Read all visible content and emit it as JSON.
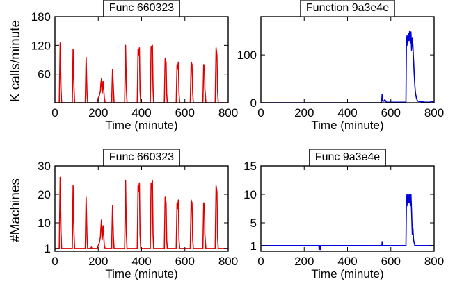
{
  "chart_data": [
    {
      "type": "line",
      "title": "Func 660323",
      "xlabel": "Time (minute)",
      "ylabel": "K calls/minute",
      "xlim": [
        0,
        800
      ],
      "ylim": [
        0,
        180
      ],
      "xticks": [
        0,
        200,
        400,
        600,
        800
      ],
      "yticks": [
        60,
        120,
        180
      ],
      "ytick_side": "left",
      "grid": false,
      "series": [
        {
          "color": "#e00000",
          "x": [
            0,
            20,
            24,
            28,
            31,
            34,
            80,
            84,
            88,
            91,
            94,
            140,
            144,
            148,
            151,
            154,
            195,
            200,
            205,
            210,
            212,
            215,
            218,
            222,
            228,
            232,
            235,
            262,
            266,
            270,
            273,
            276,
            322,
            326,
            330,
            333,
            336,
            380,
            384,
            386,
            390,
            393,
            396,
            440,
            444,
            446,
            450,
            453,
            456,
            505,
            509,
            513,
            516,
            519,
            560,
            564,
            566,
            570,
            573,
            576,
            625,
            629,
            633,
            636,
            639,
            683,
            687,
            691,
            692,
            694,
            697,
            740,
            744,
            748,
            751,
            754,
            800
          ],
          "y": [
            0,
            0,
            125,
            30,
            0,
            0,
            0,
            112,
            30,
            0,
            0,
            0,
            95,
            20,
            0,
            0,
            0,
            10,
            15,
            25,
            40,
            50,
            20,
            45,
            10,
            0,
            0,
            0,
            70,
            30,
            0,
            0,
            0,
            120,
            30,
            0,
            0,
            0,
            112,
            100,
            115,
            25,
            0,
            0,
            118,
            110,
            120,
            30,
            0,
            0,
            92,
            85,
            20,
            0,
            0,
            80,
            70,
            85,
            20,
            0,
            0,
            85,
            80,
            20,
            0,
            0,
            80,
            75,
            30,
            20,
            0,
            0,
            115,
            100,
            25,
            0,
            0
          ]
        }
      ]
    },
    {
      "type": "line",
      "title": "Function 9a3e4e",
      "xlabel": "Time (minute)",
      "ylabel": "",
      "xlim": [
        0,
        800
      ],
      "ylim": [
        0,
        180
      ],
      "xticks": [
        0,
        200,
        400,
        600,
        800
      ],
      "yticks": [
        0,
        100
      ],
      "ytick_side": "left",
      "grid": false,
      "series": [
        {
          "color": "#0000dd",
          "x": [
            0,
            550,
            557,
            560,
            563,
            568,
            572,
            576,
            580,
            600,
            670,
            672,
            675,
            678,
            681,
            684,
            687,
            690,
            693,
            696,
            699,
            702,
            705,
            708,
            711,
            714,
            718,
            722,
            726,
            740,
            760,
            780,
            790,
            800
          ],
          "y": [
            0,
            0,
            1,
            17,
            5,
            3,
            6,
            4,
            1,
            1,
            1,
            130,
            140,
            120,
            145,
            130,
            150,
            125,
            148,
            110,
            135,
            120,
            90,
            60,
            35,
            20,
            10,
            5,
            3,
            2,
            1,
            1,
            3,
            0
          ]
        }
      ]
    },
    {
      "type": "line",
      "title": "Func 660323",
      "xlabel": "Time (minute)",
      "ylabel": "#Machines",
      "xlim": [
        0,
        800
      ],
      "ylim": [
        0,
        30
      ],
      "xticks": [
        0,
        200,
        400,
        600,
        800
      ],
      "yticks": [
        1,
        10,
        20,
        30
      ],
      "ytick_side": "left",
      "grid": false,
      "series": [
        {
          "color": "#e00000",
          "x": [
            0,
            20,
            24,
            28,
            31,
            34,
            80,
            84,
            88,
            91,
            94,
            140,
            144,
            148,
            151,
            154,
            165,
            168,
            171,
            195,
            200,
            205,
            210,
            212,
            215,
            218,
            222,
            228,
            232,
            235,
            262,
            266,
            270,
            273,
            276,
            322,
            326,
            330,
            333,
            336,
            380,
            384,
            386,
            390,
            393,
            396,
            440,
            444,
            446,
            450,
            453,
            456,
            505,
            509,
            513,
            516,
            519,
            560,
            564,
            566,
            570,
            573,
            576,
            625,
            629,
            633,
            636,
            639,
            683,
            687,
            691,
            692,
            694,
            697,
            740,
            744,
            748,
            751,
            754,
            800
          ],
          "y": [
            1,
            1,
            26,
            7,
            1,
            1,
            1,
            23,
            6,
            1,
            1,
            1,
            19,
            5,
            1,
            1,
            1,
            1.5,
            1,
            1,
            2,
            3,
            5,
            8,
            11,
            4,
            9,
            2,
            1,
            1,
            1,
            16,
            5,
            1,
            1,
            1,
            25,
            6,
            1,
            1,
            1,
            23,
            21,
            24,
            6,
            1,
            1,
            24,
            22,
            25,
            6,
            1,
            1,
            19,
            17,
            4,
            1,
            1,
            17,
            15,
            18,
            4,
            1,
            1,
            18,
            17,
            4,
            1,
            1,
            17,
            16,
            6,
            4,
            1,
            1,
            23,
            21,
            5,
            1,
            1
          ]
        }
      ]
    },
    {
      "type": "line",
      "title": "Func 9a3e4e",
      "xlabel": "Time (minute)",
      "ylabel": "",
      "xlim": [
        0,
        800
      ],
      "ylim": [
        0,
        15
      ],
      "xticks": [
        0,
        200,
        400,
        600,
        800
      ],
      "yticks": [
        1,
        5,
        10,
        15
      ],
      "ytick_side": "left",
      "grid": false,
      "series": [
        {
          "color": "#0000dd",
          "x": [
            0,
            268,
            269,
            271,
            274,
            276,
            277,
            557,
            559,
            560,
            561,
            563,
            670,
            672,
            675,
            678,
            681,
            684,
            687,
            690,
            693,
            696,
            699,
            702,
            705,
            708,
            711,
            714,
            716,
            800
          ],
          "y": [
            1,
            1,
            0.3,
            1,
            0.3,
            1,
            1,
            1,
            1,
            1.7,
            1,
            1,
            1,
            9,
            10,
            8,
            10,
            8.5,
            10,
            8,
            10,
            7,
            3,
            4,
            2,
            1.5,
            1,
            1,
            1,
            1
          ]
        }
      ]
    }
  ]
}
